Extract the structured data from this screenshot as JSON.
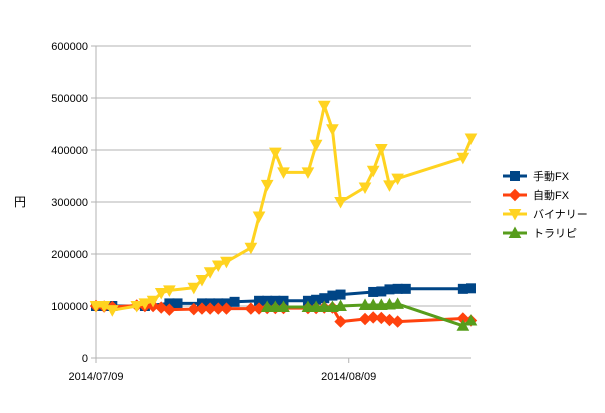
{
  "chart_data": {
    "type": "line",
    "ylabel": "円",
    "ylim": [
      0,
      600000
    ],
    "yticks": [
      0,
      100000,
      200000,
      300000,
      400000,
      500000,
      600000
    ],
    "xlim": [
      "2014-07-09",
      "2014-08-24"
    ],
    "xticks": [
      {
        "date": "2014-07-09",
        "label": "2014/07/09"
      },
      {
        "date": "2014-08-09",
        "label": "2014/08/09"
      }
    ],
    "grid": true,
    "legend": "right",
    "series": [
      {
        "name": "手動FX",
        "color": "#004586",
        "marker": "square",
        "points": [
          [
            "2014-07-09",
            100000
          ],
          [
            "2014-07-10",
            100000
          ],
          [
            "2014-07-11",
            100000
          ],
          [
            "2014-07-15",
            100000
          ],
          [
            "2014-07-18",
            105000
          ],
          [
            "2014-07-19",
            105000
          ],
          [
            "2014-07-22",
            105000
          ],
          [
            "2014-07-23",
            105000
          ],
          [
            "2014-07-24",
            105000
          ],
          [
            "2014-07-25",
            105000
          ],
          [
            "2014-07-26",
            108000
          ],
          [
            "2014-07-29",
            110000
          ],
          [
            "2014-07-30",
            110000
          ],
          [
            "2014-07-31",
            110000
          ],
          [
            "2014-08-01",
            110000
          ],
          [
            "2014-08-04",
            110000
          ],
          [
            "2014-08-05",
            112000
          ],
          [
            "2014-08-06",
            115000
          ],
          [
            "2014-08-07",
            120000
          ],
          [
            "2014-08-08",
            122000
          ],
          [
            "2014-08-12",
            127000
          ],
          [
            "2014-08-13",
            128000
          ],
          [
            "2014-08-14",
            132000
          ],
          [
            "2014-08-15",
            133000
          ],
          [
            "2014-08-16",
            133000
          ],
          [
            "2014-08-23",
            133000
          ],
          [
            "2014-08-24",
            134000
          ]
        ]
      },
      {
        "name": "自動FX",
        "color": "#ff420e",
        "marker": "diamond",
        "points": [
          [
            "2014-07-09",
            100000
          ],
          [
            "2014-07-10",
            99000
          ],
          [
            "2014-07-11",
            98000
          ],
          [
            "2014-07-14",
            101000
          ],
          [
            "2014-07-15",
            100000
          ],
          [
            "2014-07-16",
            100000
          ],
          [
            "2014-07-17",
            97000
          ],
          [
            "2014-07-18",
            93000
          ],
          [
            "2014-07-21",
            94000
          ],
          [
            "2014-07-22",
            95000
          ],
          [
            "2014-07-23",
            95000
          ],
          [
            "2014-07-24",
            95000
          ],
          [
            "2014-07-25",
            95000
          ],
          [
            "2014-07-28",
            95000
          ],
          [
            "2014-07-29",
            95000
          ],
          [
            "2014-07-30",
            96000
          ],
          [
            "2014-07-31",
            96000
          ],
          [
            "2014-08-01",
            96000
          ],
          [
            "2014-08-04",
            96000
          ],
          [
            "2014-08-05",
            96000
          ],
          [
            "2014-08-06",
            97000
          ],
          [
            "2014-08-07",
            97000
          ],
          [
            "2014-08-08",
            70000
          ],
          [
            "2014-08-11",
            75000
          ],
          [
            "2014-08-12",
            78000
          ],
          [
            "2014-08-13",
            77000
          ],
          [
            "2014-08-14",
            73000
          ],
          [
            "2014-08-15",
            70000
          ],
          [
            "2014-08-23",
            76000
          ],
          [
            "2014-08-24",
            72000
          ]
        ]
      },
      {
        "name": "バイナリー",
        "color": "#ffd320",
        "marker": "triangle-down",
        "points": [
          [
            "2014-07-09",
            100000
          ],
          [
            "2014-07-10",
            100000
          ],
          [
            "2014-07-11",
            92000
          ],
          [
            "2014-07-14",
            100000
          ],
          [
            "2014-07-15",
            105000
          ],
          [
            "2014-07-16",
            110000
          ],
          [
            "2014-07-17",
            125000
          ],
          [
            "2014-07-18",
            130000
          ],
          [
            "2014-07-21",
            135000
          ],
          [
            "2014-07-22",
            150000
          ],
          [
            "2014-07-23",
            165000
          ],
          [
            "2014-07-24",
            178000
          ],
          [
            "2014-07-25",
            185000
          ],
          [
            "2014-07-28",
            212000
          ],
          [
            "2014-07-29",
            272000
          ],
          [
            "2014-07-30",
            333000
          ],
          [
            "2014-07-31",
            395000
          ],
          [
            "2014-08-01",
            357000
          ],
          [
            "2014-08-04",
            357000
          ],
          [
            "2014-08-05",
            410000
          ],
          [
            "2014-08-06",
            485000
          ],
          [
            "2014-08-07",
            440000
          ],
          [
            "2014-08-08",
            300000
          ],
          [
            "2014-08-11",
            328000
          ],
          [
            "2014-08-12",
            360000
          ],
          [
            "2014-08-13",
            402000
          ],
          [
            "2014-08-14",
            332000
          ],
          [
            "2014-08-15",
            345000
          ],
          [
            "2014-08-23",
            385000
          ],
          [
            "2014-08-24",
            422000
          ]
        ]
      },
      {
        "name": "トラリピ",
        "color": "#579d1c",
        "marker": "triangle-up",
        "points": [
          [
            "2014-07-30",
            98000
          ],
          [
            "2014-07-31",
            98000
          ],
          [
            "2014-08-01",
            98000
          ],
          [
            "2014-08-04",
            98000
          ],
          [
            "2014-08-05",
            98000
          ],
          [
            "2014-08-06",
            98000
          ],
          [
            "2014-08-07",
            98000
          ],
          [
            "2014-08-08",
            100000
          ],
          [
            "2014-08-11",
            102000
          ],
          [
            "2014-08-12",
            102000
          ],
          [
            "2014-08-13",
            102000
          ],
          [
            "2014-08-14",
            103000
          ],
          [
            "2014-08-15",
            104000
          ],
          [
            "2014-08-23",
            62000
          ],
          [
            "2014-08-24",
            72000
          ]
        ]
      }
    ]
  }
}
